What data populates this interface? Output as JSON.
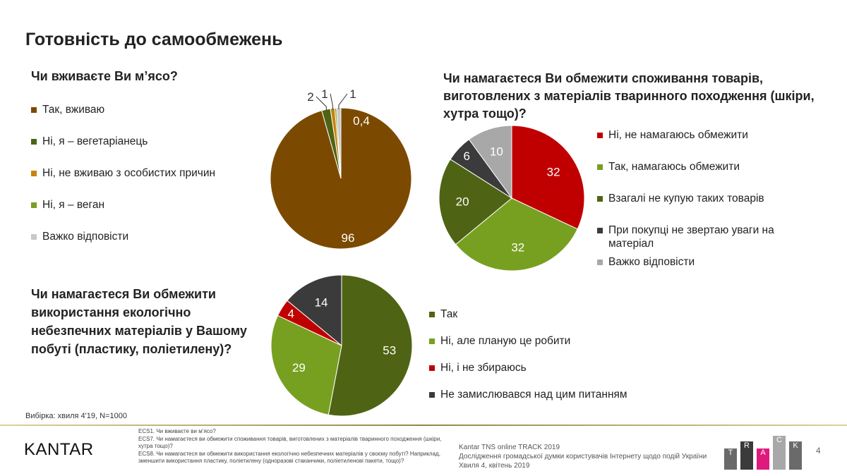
{
  "title": "Готовність до самообмежень",
  "sample": "Вибірка: хвиля 4'19, N=1000",
  "colors": {
    "brown": "#7B4A00",
    "dark_green": "#4E6414",
    "light_green": "#77A020",
    "orange": "#C8830C",
    "gray": "#C8C8C8",
    "red": "#C00000",
    "dark_gray": "#3B3B3B",
    "light_gray": "#A8A8A8",
    "pink": "#E0197D"
  },
  "chart_data": [
    {
      "type": "pie",
      "title": "Чи вживаєте Ви м’ясо?",
      "legend_placement": "left",
      "labels": [
        "Так, вживаю",
        "Ні, я – вегетаріанець",
        "Ні, не вживаю з особистих причин",
        "Ні, я – веган",
        "Важко відповісти"
      ],
      "value_labels": [
        "96",
        "2",
        "1",
        "0,4",
        "1"
      ],
      "values": [
        96,
        2,
        1,
        0.4,
        1
      ],
      "colors": [
        "#7B4A00",
        "#4E6414",
        "#C8830C",
        "#77A020",
        "#C8C8C8"
      ]
    },
    {
      "type": "pie",
      "title": "Чи намагаєтеся Ви обмежити споживання товарів, виготовлених з матеріалів тваринного походження (шкіри, хутра тощо)?",
      "legend_placement": "right",
      "labels": [
        "Ні, не намагаюсь обмежити",
        "Так, намагаюсь обмежити",
        "Взагалі не купую таких товарів",
        "При покупці не звертаю уваги на матеріал",
        "Важко відповісти"
      ],
      "value_labels": [
        "32",
        "32",
        "20",
        "6",
        "10"
      ],
      "values": [
        32,
        32,
        20,
        6,
        10
      ],
      "colors": [
        "#C00000",
        "#77A020",
        "#4E6414",
        "#3B3B3B",
        "#A8A8A8"
      ]
    },
    {
      "type": "pie",
      "title": "Чи намагаєтеся Ви обмежити використання екологічно небезпечних матеріалів у Вашому побуті (пластику, поліетилену)?",
      "legend_placement": "right",
      "labels": [
        "Так",
        "Ні, але планую це робити",
        "Ні, і не збираюсь",
        "Не замислювався над цим питанням"
      ],
      "value_labels": [
        "53",
        "29",
        "4",
        "14"
      ],
      "values": [
        53,
        29,
        4,
        14
      ],
      "colors": [
        "#4E6414",
        "#77A020",
        "#C00000",
        "#3B3B3B"
      ]
    }
  ],
  "footer": {
    "logo": "KANTAR",
    "notes": [
      "ECS1. Чи вживаєте ви м’ясо?",
      "ECS7. Чи намагаєтеся ви обмежити споживання товарів, виготовлених з матеріалів тваринного походження (шкіри, хутра тощо)?",
      "ECS8. Чи намагаєтеся ви обмежити використання екологічно небезпечних матеріалів у своєму побуті? Наприклад, зменшити використання пластику, поліетилену (одноразові стаканчики, поліетиленові пакети, тощо)?"
    ],
    "source": [
      "Kantar TNS online TRACK 2019",
      "Дослідження громадської думки користувачів Інтернету щодо подій України",
      "Хвиля 4, квітень 2019"
    ],
    "track_letters": [
      "T",
      "R",
      "A",
      "C",
      "K"
    ],
    "page": "4"
  }
}
